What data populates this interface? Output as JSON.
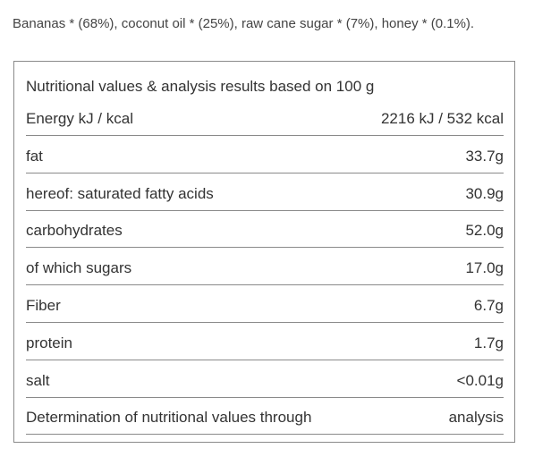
{
  "ingredients": "Bananas * (68%), coconut oil * (25%), raw cane sugar * (7%), honey * (0.1%).",
  "table": {
    "title": "Nutritional values & analysis results based on 100 g",
    "rows": [
      [
        "Energy kJ / kcal",
        "2216 kJ / 532 kcal"
      ],
      [
        "fat",
        "33.7g"
      ],
      [
        "hereof: saturated fatty acids",
        "30.9g"
      ],
      [
        "carbohydrates",
        "52.0g"
      ],
      [
        "of which sugars",
        "17.0g"
      ],
      [
        "Fiber",
        "6.7g"
      ],
      [
        "protein",
        "1.7g"
      ],
      [
        "salt",
        "<0.01g"
      ],
      [
        "Determination of nutritional values through",
        "analysis"
      ]
    ]
  }
}
